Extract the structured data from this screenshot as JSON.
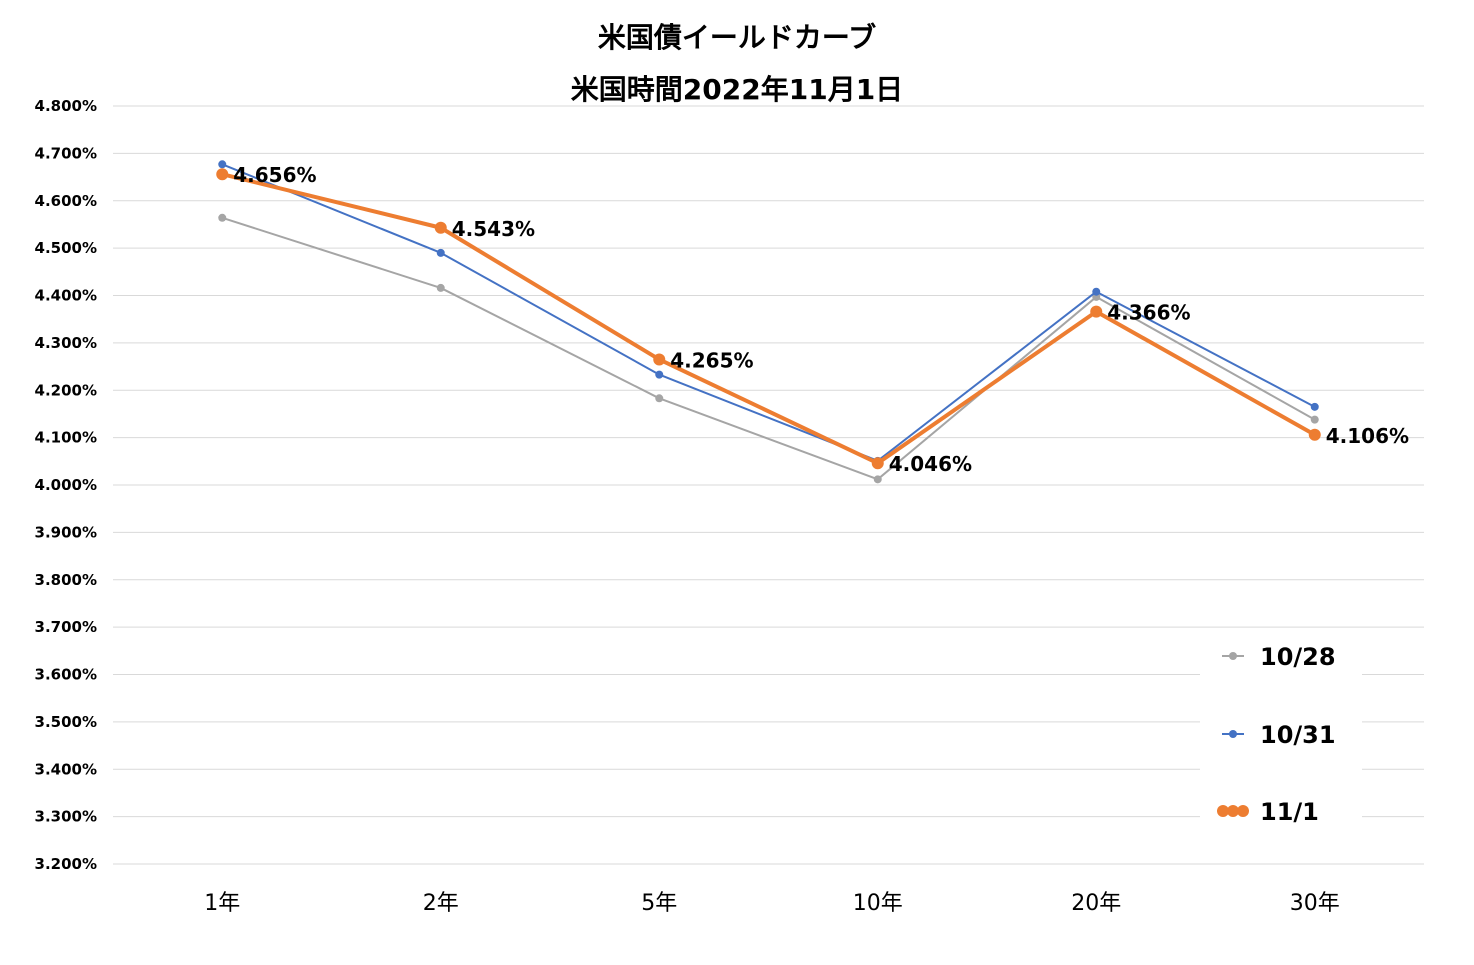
{
  "chart_data": {
    "type": "line",
    "title": "米国債イールドカーブ",
    "subtitle": "米国時間2022年11月1日",
    "xlabel": "",
    "ylabel": "",
    "categories": [
      "1年",
      "2年",
      "5年",
      "10年",
      "20年",
      "30年"
    ],
    "ylim": [
      3.2,
      4.8
    ],
    "ytick_step": 0.1,
    "ytick_format": "percent-3dp",
    "grid": true,
    "legend_position": "bottom-right",
    "series": [
      {
        "name": "10/28",
        "color": "#A5A5A5",
        "values": [
          4.564,
          4.416,
          4.183,
          4.012,
          4.397,
          4.138
        ],
        "show_labels": false
      },
      {
        "name": "10/31",
        "color": "#4472C4",
        "values": [
          4.677,
          4.49,
          4.233,
          4.051,
          4.408,
          4.165
        ],
        "show_labels": false
      },
      {
        "name": "11/1",
        "color": "#ED7D31",
        "values": [
          4.656,
          4.543,
          4.265,
          4.046,
          4.366,
          4.106
        ],
        "show_labels": true,
        "labels": [
          "4.656%",
          "4.543%",
          "4.265%",
          "4.046%",
          "4.366%",
          "4.106%"
        ]
      }
    ]
  }
}
